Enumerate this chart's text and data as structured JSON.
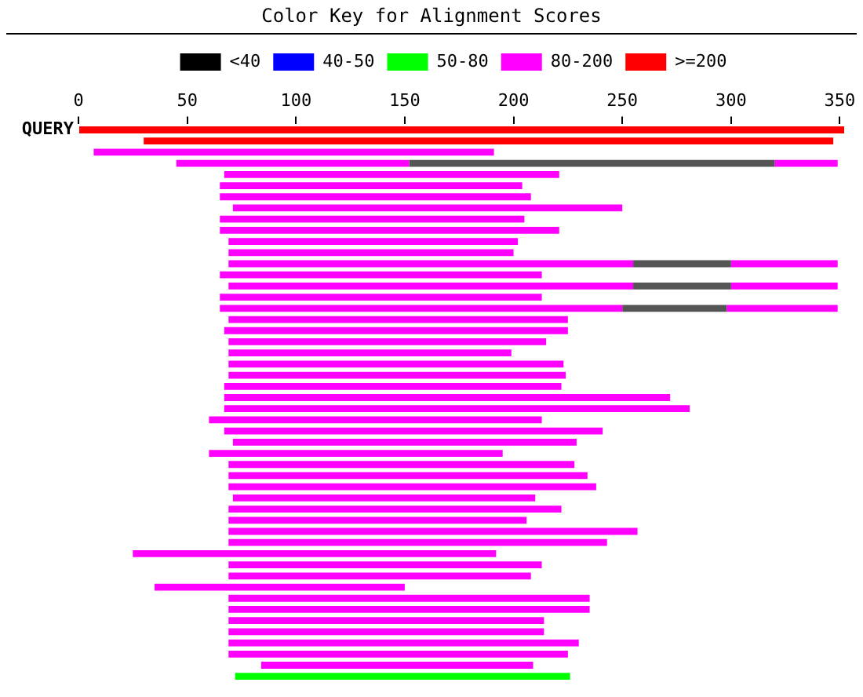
{
  "chart_data": {
    "type": "bar",
    "orientation": "horizontal",
    "stacked": true,
    "title": "Color Key for Alignment Scores",
    "legend": "top",
    "grid": false,
    "annotations": [
      "QUERY"
    ],
    "categories": [
      null,
      null,
      null,
      null,
      null,
      null,
      null,
      null,
      null,
      null,
      null,
      null,
      null,
      null,
      null,
      null,
      null,
      null,
      null,
      null,
      null,
      null,
      null,
      null,
      null,
      null,
      null,
      null,
      null,
      null,
      null,
      null,
      null,
      null,
      null,
      null,
      null,
      null,
      null,
      null,
      null,
      null,
      null,
      null,
      null,
      null,
      null,
      null,
      null,
      null
    ],
    "xlim": [
      0,
      352
    ],
    "xticks": [
      0,
      50,
      100,
      150,
      200,
      250,
      300,
      350
    ],
    "series": [
      {
        "colors": [
          "#ff0000",
          "#ff0000",
          "#ff00ff",
          "#ff00ff",
          "#ff00ff",
          "#ff00ff",
          "#ff00ff",
          "#ff00ff",
          "#ff00ff",
          "#ff00ff",
          "#ff00ff",
          "#ff00ff",
          "#ff00ff",
          "#ff00ff",
          "#ff00ff",
          "#ff00ff",
          "#ff00ff",
          "#ff00ff",
          "#ff00ff",
          "#ff00ff",
          "#ff00ff",
          "#ff00ff",
          "#ff00ff",
          "#ff00ff",
          "#ff00ff",
          "#ff00ff",
          "#ff00ff",
          "#ff00ff",
          "#ff00ff",
          "#ff00ff",
          "#ff00ff",
          "#ff00ff",
          "#ff00ff",
          "#ff00ff",
          "#ff00ff",
          "#ff00ff",
          "#ff00ff",
          "#ff00ff",
          "#ff00ff",
          "#ff00ff",
          "#ff00ff",
          "#ff00ff",
          "#ff00ff",
          "#ff00ff",
          "#ff00ff",
          "#ff00ff",
          "#ff00ff",
          "#ff00ff",
          "#ff00ff",
          "#00ff00"
        ],
        "base": [
          0,
          30,
          7,
          45,
          67,
          65,
          65,
          71,
          65,
          65,
          69,
          69,
          69,
          65,
          69,
          65,
          65,
          69,
          67,
          69,
          69,
          69,
          69,
          67,
          67,
          67,
          60,
          67,
          71,
          60,
          69,
          69,
          69,
          71,
          69,
          69,
          69,
          69,
          25,
          69,
          69,
          35,
          69,
          69,
          69,
          69,
          69,
          69,
          84,
          72
        ],
        "values": [
          352,
          317,
          184,
          107,
          154,
          139,
          143,
          179,
          140,
          156,
          133,
          131,
          186,
          148,
          186,
          148,
          185,
          156,
          158,
          146,
          130,
          154,
          155,
          155,
          205,
          214,
          153,
          174,
          158,
          135,
          159,
          165,
          169,
          139,
          153,
          137,
          188,
          174,
          167,
          144,
          139,
          115,
          166,
          166,
          145,
          145,
          161,
          156,
          125,
          154
        ]
      },
      {
        "color": "#555555",
        "values": [
          0,
          0,
          0,
          168,
          0,
          0,
          0,
          0,
          0,
          0,
          0,
          0,
          45,
          0,
          45,
          0,
          48,
          0,
          0,
          0,
          0,
          0,
          0,
          0,
          0,
          0,
          0,
          0,
          0,
          0,
          0,
          0,
          0,
          0,
          0,
          0,
          0,
          0,
          0,
          0,
          0,
          0,
          0,
          0,
          0,
          0,
          0,
          0,
          0,
          0
        ]
      },
      {
        "color": "#ff00ff",
        "values": [
          0,
          0,
          0,
          29,
          0,
          0,
          0,
          0,
          0,
          0,
          0,
          0,
          49,
          0,
          49,
          0,
          51,
          0,
          0,
          0,
          0,
          0,
          0,
          0,
          0,
          0,
          0,
          0,
          0,
          0,
          0,
          0,
          0,
          0,
          0,
          0,
          0,
          0,
          0,
          0,
          0,
          0,
          0,
          0,
          0,
          0,
          0,
          0,
          0,
          0
        ]
      },
      {
        "name": "<40",
        "color": "#000000",
        "values": [
          null,
          null,
          null,
          null,
          null,
          null,
          null,
          null,
          null,
          null,
          null,
          null,
          null,
          null,
          null,
          null,
          null,
          null,
          null,
          null,
          null,
          null,
          null,
          null,
          null,
          null,
          null,
          null,
          null,
          null,
          null,
          null,
          null,
          null,
          null,
          null,
          null,
          null,
          null,
          null,
          null,
          null,
          null,
          null,
          null,
          null,
          null,
          null,
          null,
          null
        ]
      },
      {
        "name": "40-50",
        "color": "#0000ff",
        "values": [
          null,
          null,
          null,
          null,
          null,
          null,
          null,
          null,
          null,
          null,
          null,
          null,
          null,
          null,
          null,
          null,
          null,
          null,
          null,
          null,
          null,
          null,
          null,
          null,
          null,
          null,
          null,
          null,
          null,
          null,
          null,
          null,
          null,
          null,
          null,
          null,
          null,
          null,
          null,
          null,
          null,
          null,
          null,
          null,
          null,
          null,
          null,
          null,
          null,
          null
        ]
      },
      {
        "name": "50-80",
        "color": "#00ff00",
        "values": [
          null,
          null,
          null,
          null,
          null,
          null,
          null,
          null,
          null,
          null,
          null,
          null,
          null,
          null,
          null,
          null,
          null,
          null,
          null,
          null,
          null,
          null,
          null,
          null,
          null,
          null,
          null,
          null,
          null,
          null,
          null,
          null,
          null,
          null,
          null,
          null,
          null,
          null,
          null,
          null,
          null,
          null,
          null,
          null,
          null,
          null,
          null,
          null,
          null,
          null
        ]
      },
      {
        "name": "80-200",
        "color": "#ff00ff",
        "values": [
          null,
          null,
          null,
          null,
          null,
          null,
          null,
          null,
          null,
          null,
          null,
          null,
          null,
          null,
          null,
          null,
          null,
          null,
          null,
          null,
          null,
          null,
          null,
          null,
          null,
          null,
          null,
          null,
          null,
          null,
          null,
          null,
          null,
          null,
          null,
          null,
          null,
          null,
          null,
          null,
          null,
          null,
          null,
          null,
          null,
          null,
          null,
          null,
          null,
          null
        ]
      },
      {
        "name": ">=200",
        "color": "#ff0000",
        "values": [
          null,
          null,
          null,
          null,
          null,
          null,
          null,
          null,
          null,
          null,
          null,
          null,
          null,
          null,
          null,
          null,
          null,
          null,
          null,
          null,
          null,
          null,
          null,
          null,
          null,
          null,
          null,
          null,
          null,
          null,
          null,
          null,
          null,
          null,
          null,
          null,
          null,
          null,
          null,
          null,
          null,
          null,
          null,
          null,
          null,
          null,
          null,
          null,
          null,
          null
        ]
      }
    ]
  }
}
